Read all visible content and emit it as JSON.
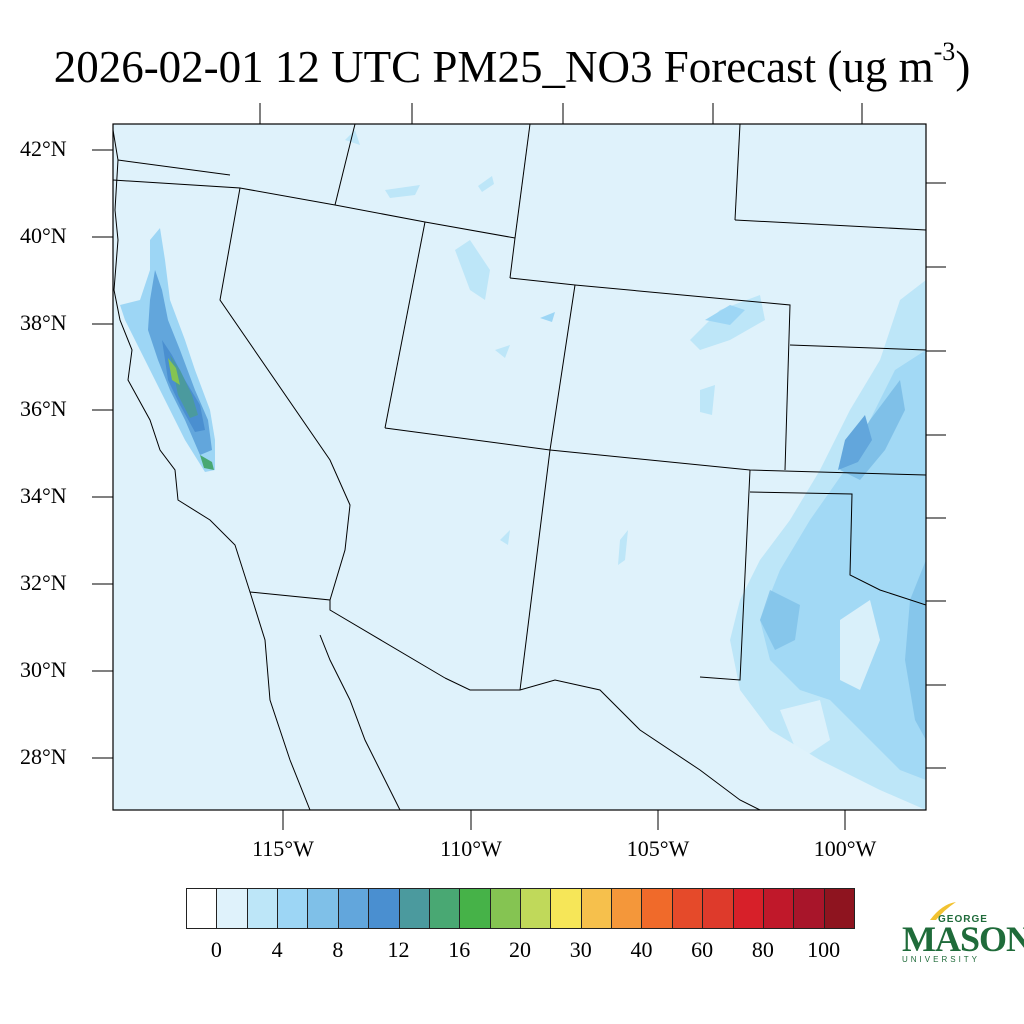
{
  "title": {
    "main": "2026-02-01 12 UTC PM25_NO3 Forecast (ug m",
    "superscript": "-3",
    "close": ")"
  },
  "map": {
    "lat_labels": [
      "42°N",
      "40°N",
      "38°N",
      "36°N",
      "34°N",
      "32°N",
      "30°N",
      "28°N"
    ],
    "lon_labels": [
      "115°W",
      "110°W",
      "105°W",
      "100°W"
    ],
    "background_color": "#dff2fb",
    "region": "Southwestern United States and northern Mexico"
  },
  "colorbar": {
    "colors": [
      "#ffffff",
      "#dff2fb",
      "#bde6f8",
      "#9dd6f5",
      "#7fc0e8",
      "#62a6dc",
      "#4a8fd0",
      "#4b9a9e",
      "#49a873",
      "#46b248",
      "#85c452",
      "#c0d95a",
      "#f6e658",
      "#f6c04c",
      "#f4973a",
      "#f06a2a",
      "#e54a2a",
      "#de3a2b",
      "#d72029",
      "#c0182a",
      "#a8152a",
      "#8e141f"
    ],
    "labels": [
      "0",
      "4",
      "8",
      "12",
      "16",
      "20",
      "30",
      "40",
      "60",
      "80",
      "100"
    ]
  },
  "logo": {
    "top": "GEORGE",
    "main": "MASON",
    "bottom": "UNIVERSITY"
  }
}
